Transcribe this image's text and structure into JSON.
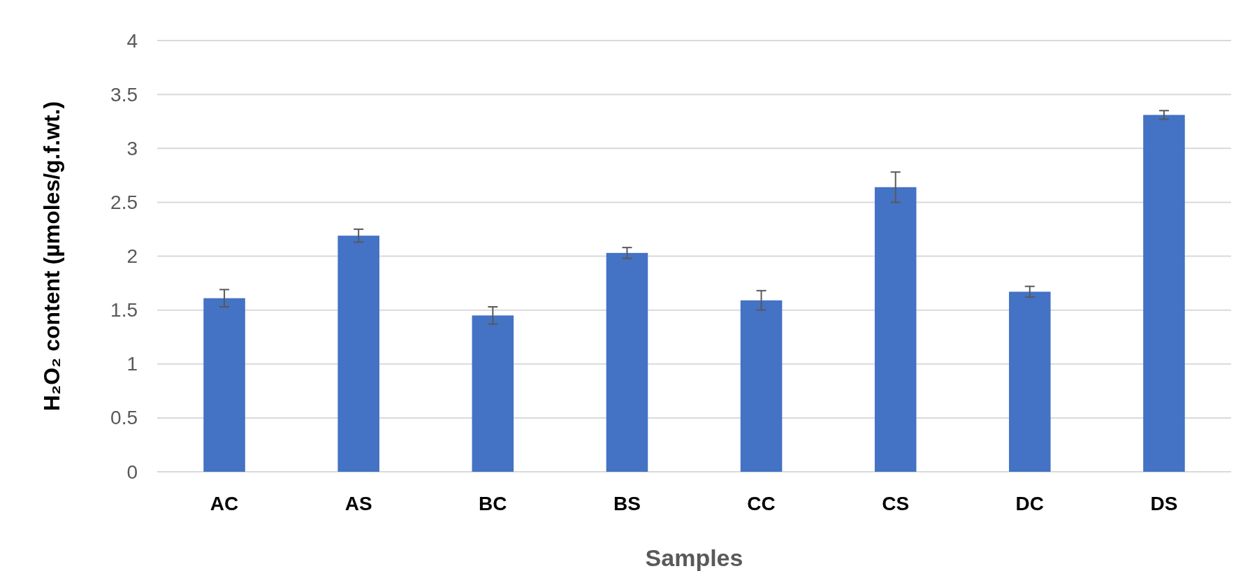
{
  "chart_data": {
    "type": "bar",
    "xlabel": "Samples",
    "ylabel": "H₂O₂ content (µmoles/g.f.wt.)",
    "categories": [
      "AC",
      "AS",
      "BC",
      "BS",
      "CC",
      "CS",
      "DC",
      "DS"
    ],
    "values": [
      1.61,
      2.19,
      1.45,
      2.03,
      1.59,
      2.64,
      1.67,
      3.31
    ],
    "errors": [
      0.08,
      0.06,
      0.08,
      0.05,
      0.09,
      0.14,
      0.05,
      0.04
    ],
    "color": "#4472c4",
    "ylim": [
      0,
      4
    ],
    "yticks": [
      0,
      0.5,
      1,
      1.5,
      2,
      2.5,
      3,
      3.5,
      4
    ],
    "grid": "y"
  }
}
